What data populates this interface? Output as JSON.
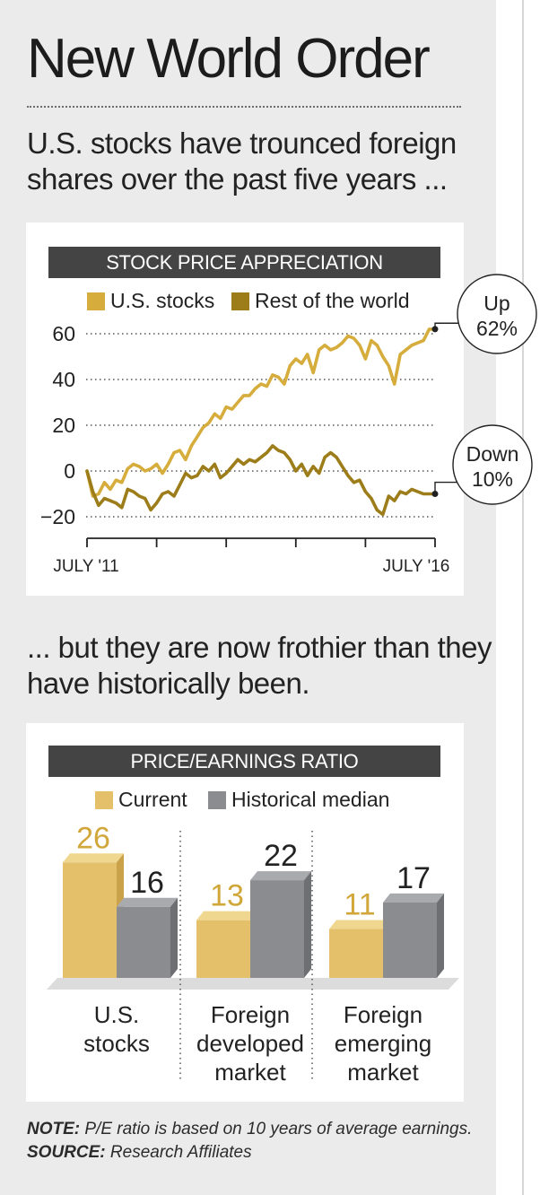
{
  "headline": "New World Order",
  "intro1": "U.S. stocks have trounced foreign shares over the past five years ...",
  "intro2": "... but they are now frothier than they have historically been.",
  "colors": {
    "us_stocks": "#d6ad3c",
    "rest_of_world": "#9c7d1a",
    "current": "#e4c06a",
    "historical": "#8b8c8f",
    "title_bar": "#444444"
  },
  "chart_data": [
    {
      "type": "line",
      "title": "STOCK PRICE APPRECIATION",
      "x_tick_labels": [
        "JULY '11",
        "JULY '16"
      ],
      "x": [
        0,
        1,
        2,
        3,
        4,
        5,
        6,
        7,
        8,
        9,
        10,
        11,
        12,
        13,
        14,
        15,
        16,
        17,
        18,
        19,
        20,
        21,
        22,
        23,
        24,
        25,
        26,
        27,
        28,
        29,
        30,
        31,
        32,
        33,
        34,
        35,
        36,
        37,
        38,
        39,
        40,
        41,
        42,
        43,
        44,
        45,
        46,
        47,
        48,
        49,
        50,
        51,
        52,
        53,
        54,
        55,
        56,
        57,
        58,
        59,
        60
      ],
      "xlim": [
        0,
        60
      ],
      "yticks": [
        60,
        40,
        20,
        0,
        -20
      ],
      "ytick_labels": [
        "60",
        "40",
        "20",
        "0",
        "−20"
      ],
      "ylim": [
        -25,
        65
      ],
      "grid": true,
      "legend": "top",
      "series": [
        {
          "name": "U.S. stocks",
          "values": [
            0,
            -11,
            -10,
            -5,
            -8,
            -4,
            -5,
            1,
            3,
            2,
            0,
            1,
            3,
            -1,
            3,
            8,
            9,
            5,
            11,
            15,
            19,
            21,
            25,
            23,
            28,
            27,
            30,
            33,
            33,
            36,
            38,
            37,
            42,
            41,
            38,
            46,
            49,
            47,
            51,
            43,
            53,
            55,
            53,
            54,
            56,
            59,
            58,
            55,
            49,
            57,
            55,
            50,
            46,
            38,
            51,
            53,
            55,
            56,
            57,
            62,
            62
          ],
          "end_label": [
            "Up",
            "62%"
          ]
        },
        {
          "name": "Rest of the world",
          "values": [
            0,
            -9,
            -15,
            -12,
            -13,
            -14,
            -16,
            -8,
            -9,
            -11,
            -12,
            -17,
            -14,
            -10,
            -9,
            -11,
            -6,
            -1,
            -3,
            -2,
            2,
            0,
            3,
            -3,
            -1,
            2,
            5,
            3,
            5,
            4,
            6,
            8,
            11,
            9,
            8,
            5,
            0,
            3,
            -2,
            2,
            -1,
            6,
            8,
            6,
            2,
            -2,
            -5,
            -4,
            -9,
            -12,
            -17,
            -19,
            -11,
            -13,
            -9,
            -10,
            -8,
            -9,
            -10,
            -10,
            -10
          ],
          "end_label": [
            "Down",
            "10%"
          ]
        }
      ]
    },
    {
      "type": "bar",
      "title": "PRICE/EARNINGS RATIO",
      "categories": [
        [
          "U.S.",
          "stocks"
        ],
        [
          "Foreign",
          "developed",
          "market"
        ],
        [
          "Foreign",
          "emerging",
          "market"
        ]
      ],
      "series": [
        {
          "name": "Current",
          "values": [
            26,
            13,
            11
          ]
        },
        {
          "name": "Historical median",
          "values": [
            16,
            22,
            17
          ]
        }
      ],
      "ylim": [
        0,
        28
      ]
    }
  ],
  "note": {
    "note_label": "NOTE:",
    "note_text": " P/E ratio is based on 10 years of average earnings. ",
    "source_label": "SOURCE:",
    "source_text": " Research Affiliates"
  }
}
